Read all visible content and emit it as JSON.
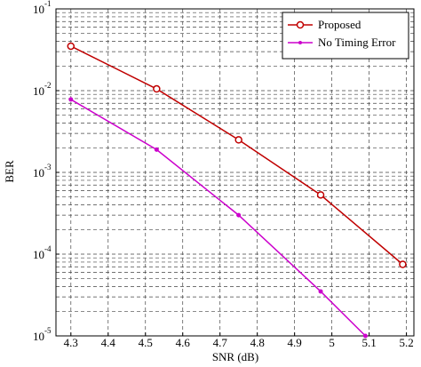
{
  "chart_data": {
    "type": "line",
    "x_label": "SNR (dB)",
    "y_label": "BER",
    "xlim": [
      4.26,
      5.22
    ],
    "xticks": [
      4.3,
      4.4,
      4.5,
      4.6,
      4.7,
      4.8,
      4.9,
      5,
      5.1,
      5.2
    ],
    "ylim": [
      1e-05,
      0.1
    ],
    "log_y": true,
    "grid": true,
    "minor_grid": true,
    "yticks": [
      {
        "value": 0.1,
        "label": "10",
        "exponent": "-1"
      },
      {
        "value": 0.01,
        "label": "10",
        "exponent": "-2"
      },
      {
        "value": 0.001,
        "label": "10",
        "exponent": "-3"
      },
      {
        "value": 0.0001,
        "label": "10",
        "exponent": "-4"
      },
      {
        "value": 1e-05,
        "label": "10",
        "exponent": "-5"
      }
    ],
    "legend": "upper right",
    "series": [
      {
        "name": "Proposed",
        "color": "#c00000",
        "marker": "circle",
        "x": [
          4.3,
          4.53,
          4.75,
          4.97,
          5.19
        ],
        "values": [
          0.035,
          0.0105,
          0.0025,
          0.00053,
          7.5e-05
        ]
      },
      {
        "name": "No Timing Error",
        "color": "#cc00cc",
        "marker": "dot",
        "x": [
          4.3,
          4.53,
          4.75,
          4.97,
          5.09
        ],
        "values": [
          0.0078,
          0.0019,
          0.0003,
          3.5e-05,
          1e-05
        ]
      }
    ]
  }
}
